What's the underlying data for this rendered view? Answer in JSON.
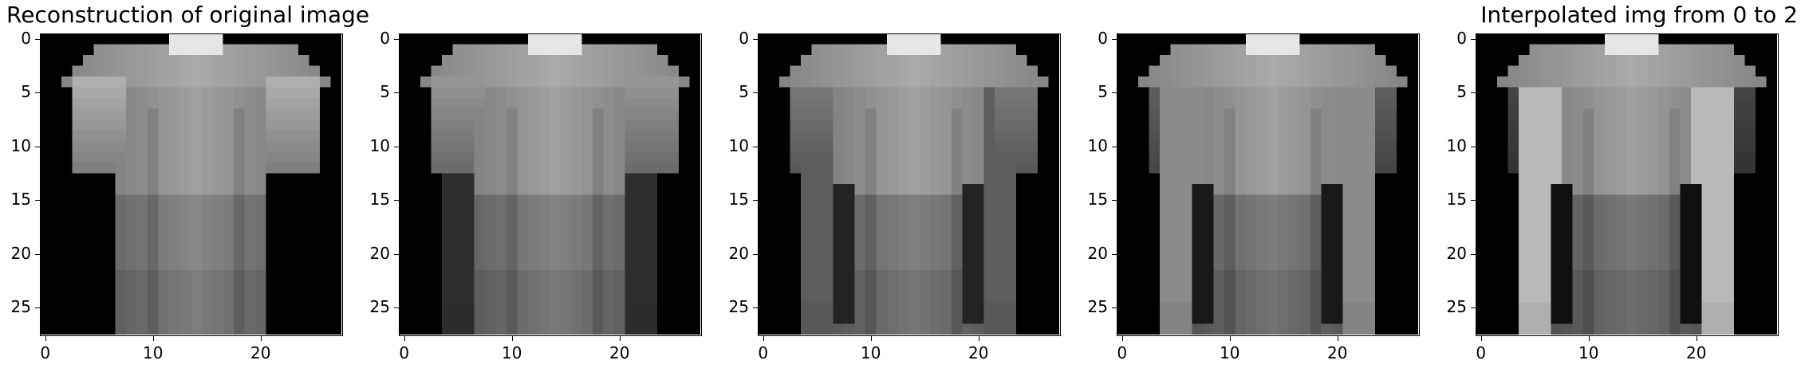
{
  "panels": [
    {
      "title": "Reconstruction of original image",
      "title_align": "left",
      "blend": 0.0
    },
    {
      "title": "",
      "title_align": "center",
      "blend": 0.25
    },
    {
      "title": "",
      "title_align": "center",
      "blend": 0.5
    },
    {
      "title": "",
      "title_align": "center",
      "blend": 0.75
    },
    {
      "title": "Interpolated img from 0 to 2",
      "title_align": "right",
      "blend": 1.0
    }
  ],
  "axis": {
    "y_ticks": [
      "0",
      "5",
      "10",
      "15",
      "20",
      "25"
    ],
    "x_ticks": [
      "0",
      "10",
      "20"
    ],
    "y_tick_values": [
      0,
      5,
      10,
      15,
      20,
      25
    ],
    "x_tick_values": [
      0,
      10,
      20
    ],
    "pixels": 28
  },
  "colormap": "gray",
  "image_subject": "clothing item (T-shirt to long-sleeve shirt interpolation)"
}
